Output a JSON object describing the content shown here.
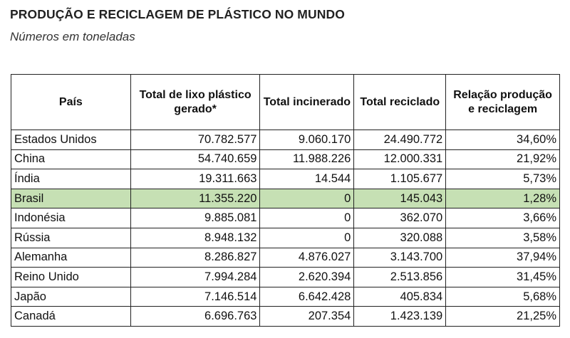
{
  "title": "PRODUÇÃO E RECICLAGEM DE PLÁSTICO NO MUNDO",
  "subtitle": "Números em toneladas",
  "highlight_color": "#c6e0b4",
  "chart_data": {
    "type": "table",
    "title": "PRODUÇÃO E RECICLAGEM DE PLÁSTICO NO MUNDO",
    "subtitle": "Números em toneladas",
    "columns": [
      "País",
      "Total de lixo plástico gerado*",
      "Total incinerado",
      "Total reciclado",
      "Relação produção e reciclagem"
    ],
    "highlighted_row": "Brasil",
    "rows": [
      [
        "Estados Unidos",
        "70.782.577",
        "9.060.170",
        "24.490.772",
        "34,60%"
      ],
      [
        "China",
        "54.740.659",
        "11.988.226",
        "12.000.331",
        "21,92%"
      ],
      [
        "Índia",
        "19.311.663",
        "14.544",
        "1.105.677",
        "5,73%"
      ],
      [
        "Brasil",
        "11.355.220",
        "0",
        "145.043",
        "1,28%"
      ],
      [
        "Indonésia",
        "9.885.081",
        "0",
        "362.070",
        "3,66%"
      ],
      [
        "Rússia",
        "8.948.132",
        "0",
        "320.088",
        "3,58%"
      ],
      [
        "Alemanha",
        "8.286.827",
        "4.876.027",
        "3.143.700",
        "37,94%"
      ],
      [
        "Reino Unido",
        "7.994.284",
        "2.620.394",
        "2.513.856",
        "31,45%"
      ],
      [
        "Japão",
        "7.146.514",
        "6.642.428",
        "405.834",
        "5,68%"
      ],
      [
        "Canadá",
        "6.696.763",
        "207.354",
        "1.423.139",
        "21,25%"
      ]
    ]
  }
}
